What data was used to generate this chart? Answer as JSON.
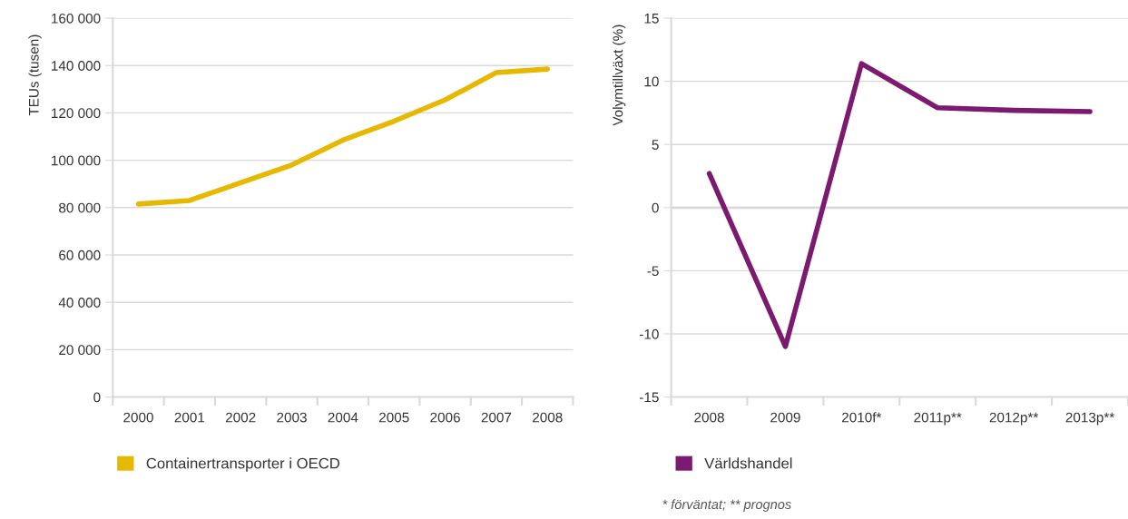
{
  "chart_data": [
    {
      "type": "line",
      "ylabel": "TEUs (tusen)",
      "categories": [
        "2000",
        "2001",
        "2002",
        "2003",
        "2004",
        "2005",
        "2006",
        "2007",
        "2008"
      ],
      "series": [
        {
          "name": "Containertransporter i OECD",
          "color": "#e6b800",
          "values": [
            81500,
            83000,
            90500,
            98000,
            108500,
            116500,
            125500,
            137000,
            138500
          ]
        }
      ],
      "ylim": [
        0,
        160000
      ],
      "yticks": [
        0,
        {
          "value": 20000,
          "label": "20 000"
        },
        {
          "value": 40000,
          "label": "40 000"
        },
        {
          "value": 60000,
          "label": "60 000"
        },
        {
          "value": 80000,
          "label": "80 000"
        },
        {
          "value": 100000,
          "label": "100 000"
        },
        {
          "value": 120000,
          "label": "120 000"
        },
        {
          "value": 140000,
          "label": "140 000"
        },
        {
          "value": 160000,
          "label": "160 000"
        }
      ],
      "grid": "y",
      "legend": "bottom",
      "marker": "none",
      "line_style": "solid"
    },
    {
      "type": "line",
      "ylabel": "Volymtillväxt (%)",
      "categories": [
        "2008",
        "2009",
        "2010f*",
        "2011p**",
        "2012p**",
        "2013p**"
      ],
      "series": [
        {
          "name": "Världshandel",
          "color": "#7b1a6e",
          "values": [
            2.7,
            -11.0,
            11.4,
            7.9,
            7.7,
            7.6
          ]
        }
      ],
      "ylim": [
        -15,
        15
      ],
      "yticks": [
        {
          "value": -15,
          "label": "-15"
        },
        {
          "value": -10,
          "label": "-10"
        },
        {
          "value": -5,
          "label": "-5"
        },
        0,
        5,
        10,
        15
      ],
      "grid": "y",
      "legend": "bottom",
      "marker": "none",
      "line_style": "solid",
      "annotations": [
        "* förväntat; ** prognos"
      ]
    }
  ]
}
